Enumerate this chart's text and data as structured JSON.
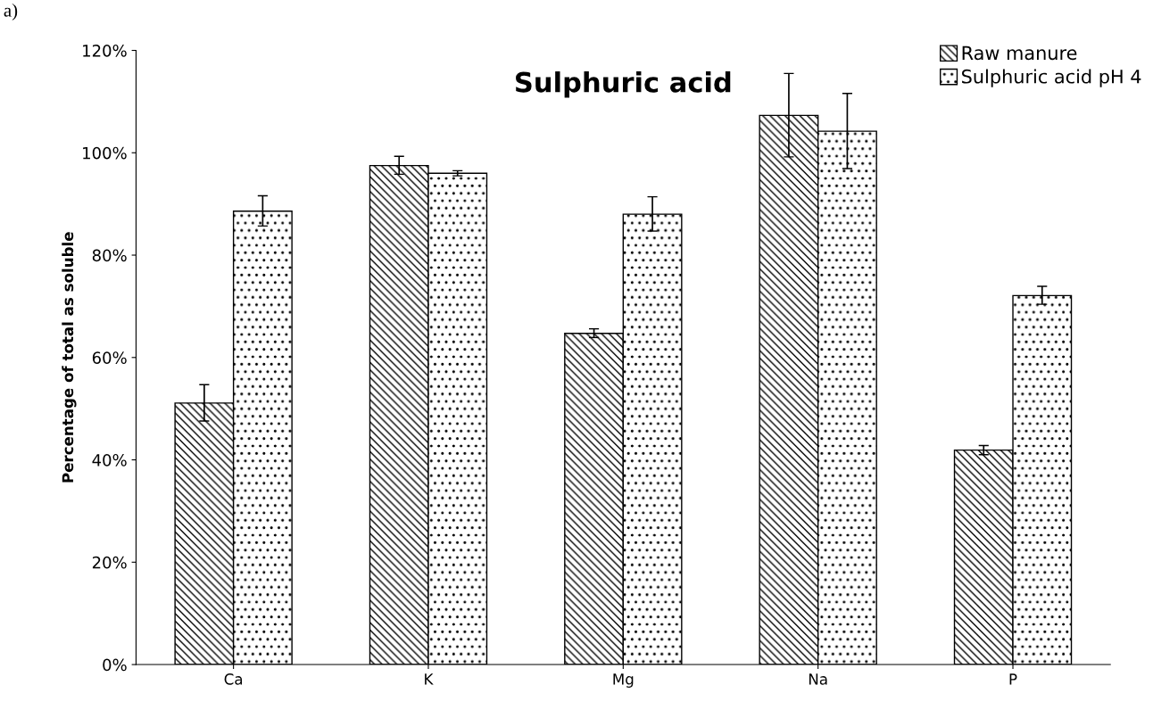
{
  "chart_data": {
    "type": "bar",
    "title": "Sulphuric acid",
    "ylabel": "Percentage of total as soluble",
    "annotations": [
      "a)"
    ],
    "categories": [
      "Ca",
      "K",
      "Mg",
      "Na",
      "P"
    ],
    "series": [
      {
        "name": "Raw manure",
        "color": "#000000",
        "values": [
          51.1,
          97.5,
          64.7,
          107.3,
          41.9
        ],
        "errors": [
          [
            47.6,
            54.7
          ],
          [
            95.8,
            99.3
          ],
          [
            63.9,
            65.6
          ],
          [
            99.2,
            115.5
          ],
          [
            41.0,
            42.8
          ]
        ]
      },
      {
        "name": "Sulphuric acid pH 4",
        "color": "#000000",
        "values": [
          88.6,
          96.0,
          88.0,
          104.2,
          72.1
        ],
        "errors": [
          [
            85.7,
            91.6
          ],
          [
            95.5,
            96.5
          ],
          [
            84.7,
            91.4
          ],
          [
            96.9,
            111.6
          ],
          [
            70.4,
            73.9
          ]
        ]
      }
    ],
    "ylim": [
      0,
      120
    ],
    "yticks": [
      {
        "value": 0,
        "label": "0%"
      },
      {
        "value": 20,
        "label": "20%"
      },
      {
        "value": 40,
        "label": "40%"
      },
      {
        "value": 60,
        "label": "60%"
      },
      {
        "value": 80,
        "label": "80%"
      },
      {
        "value": 100,
        "label": "100%"
      },
      {
        "value": 120,
        "label": "120%"
      }
    ],
    "grid": false,
    "legend": "top right"
  }
}
